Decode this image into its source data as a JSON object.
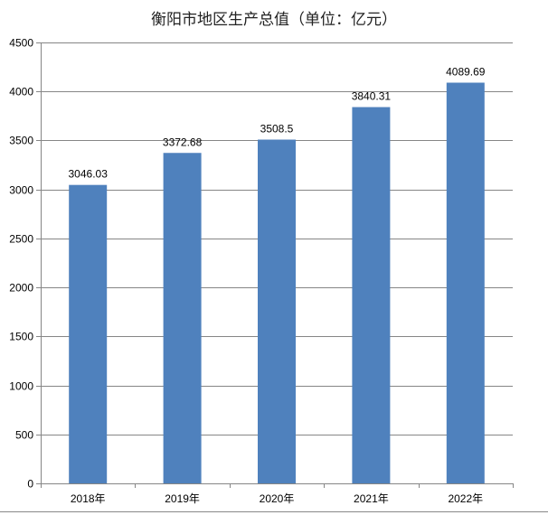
{
  "chart_data": {
    "type": "bar",
    "title": "衡阳市地区生产总值（单位：亿元）",
    "categories": [
      "2018年",
      "2019年",
      "2020年",
      "2021年",
      "2022年"
    ],
    "values": [
      3046.03,
      3372.68,
      3508.5,
      3840.31,
      4089.69
    ],
    "data_labels": [
      "3046.03",
      "3372.68",
      "3508.5",
      "3840.31",
      "4089.69"
    ],
    "ylim": [
      0,
      4500
    ],
    "yticks": [
      0,
      500,
      1000,
      1500,
      2000,
      2500,
      3000,
      3500,
      4000,
      4500
    ],
    "grid": true,
    "legend": "none",
    "bar_color": "#4f81bd",
    "grid_color": "#868686"
  }
}
